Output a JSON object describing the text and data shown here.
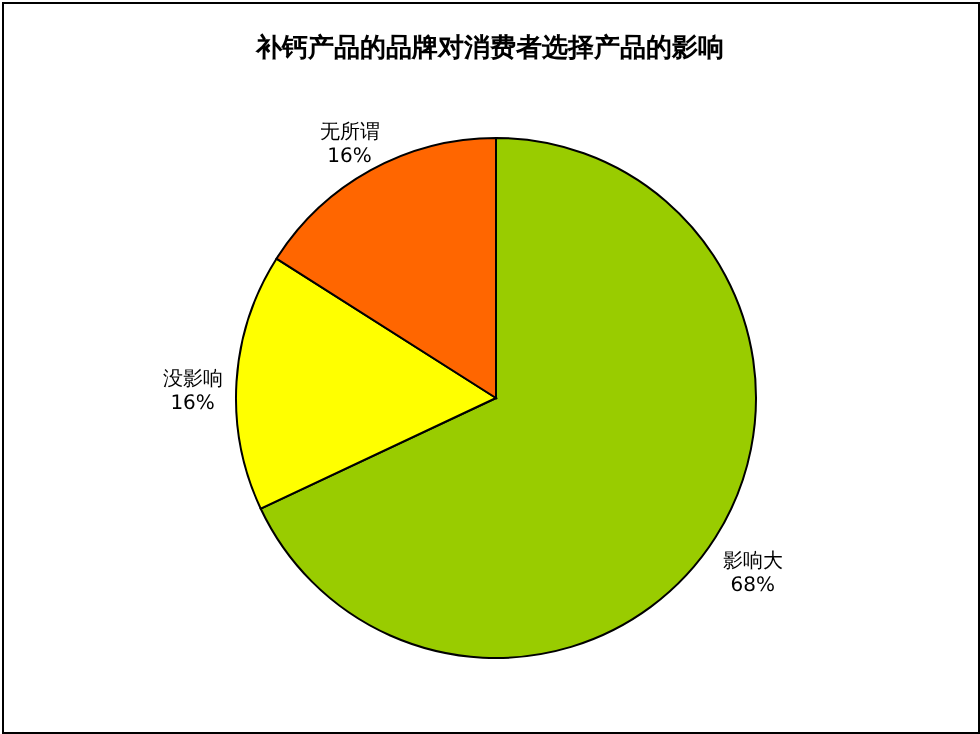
{
  "chart_data": {
    "type": "pie",
    "title": "补钙产品的品牌对消费者选择产品的影响",
    "categories": [
      "影响大",
      "没影响",
      "无所谓"
    ],
    "values": [
      68,
      16,
      16
    ],
    "value_labels": [
      "68%",
      "16%",
      "16%"
    ],
    "colors": [
      "#99cc00",
      "#ffff00",
      "#ff6600"
    ],
    "legend": false
  }
}
